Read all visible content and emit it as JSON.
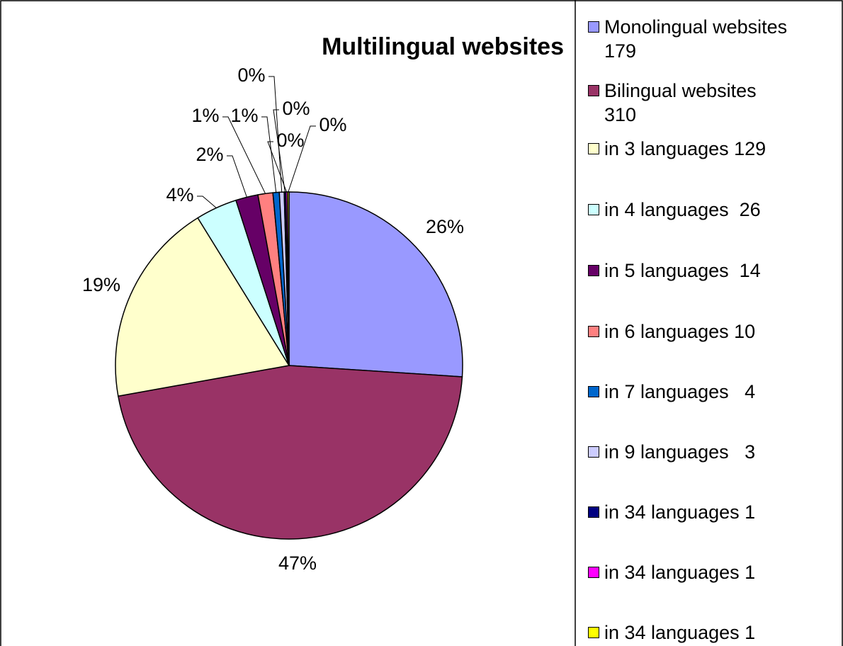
{
  "chart_data": {
    "type": "pie",
    "title": "Multilingual websites",
    "categories": [
      "Monolingual websites 179",
      "Bilingual websites 310",
      "in 3 languages 129",
      "in 4 languages  26",
      "in 5 languages  14",
      "in 6 languages 10",
      "in 7 languages   4",
      "in 9 languages   3",
      "in 34 languages 1",
      "in 34 languages 1",
      "in 34 languages 1"
    ],
    "values": [
      26.3,
      46.6,
      19.2,
      3.9,
      2.1,
      1.4,
      0.6,
      0.45,
      0.15,
      0.15,
      0.15
    ],
    "value_labels": [
      "26%",
      "47%",
      "19%",
      "4%",
      "2%",
      "1%",
      "1%",
      "0%",
      "0%",
      "0%",
      "0%"
    ],
    "colors": [
      "#9999ff",
      "#993366",
      "#ffffcc",
      "#ccffff",
      "#660066",
      "#ff8080",
      "#0066cc",
      "#ccccff",
      "#000080",
      "#ff00ff",
      "#ffff00"
    ],
    "legend": "right"
  }
}
